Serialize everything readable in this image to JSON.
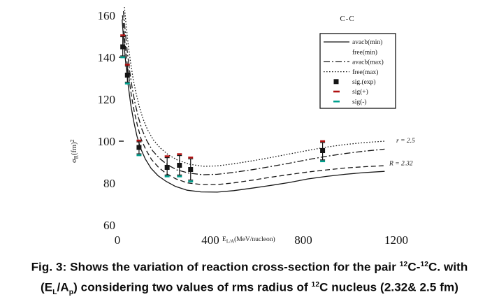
{
  "figure": {
    "legend": {
      "title": "C-C",
      "entries": [
        {
          "label": "avacb(min)",
          "sample": "solid",
          "color": "#151515"
        },
        {
          "label": "free(min)",
          "sample": "none",
          "color": "#151515"
        },
        {
          "label": "avacb(max)",
          "sample": "dashdot",
          "color": "#151515"
        },
        {
          "label": "free(max)",
          "sample": "dotted",
          "color": "#151515"
        },
        {
          "label": "sig.(exp)",
          "sample": "square",
          "color": "#151515"
        },
        {
          "label": "sig(+)",
          "sample": "dash",
          "color": "#b01010"
        },
        {
          "label": "sig(-)",
          "sample": "dash",
          "color": "#00a08e"
        }
      ]
    }
  },
  "chart_data": {
    "type": "line",
    "title": "C-C",
    "xlabel_parts": {
      "base": "E",
      "sub": "L/A",
      "rest": "(MeV/nucleon)"
    },
    "ylabel_parts": {
      "base": "σ",
      "sub": "R",
      "mid": "(fm)",
      "sup": "2"
    },
    "x_ticks": [
      0,
      400,
      800,
      1200
    ],
    "y_ticks": [
      160,
      140,
      120,
      100,
      80,
      60
    ],
    "y_tick_dashes": [
      140,
      100
    ],
    "xlim": [
      0,
      1360
    ],
    "ylim": [
      60,
      165
    ],
    "grid": false,
    "legend_position": "upper-right",
    "accent_colors": {
      "error_plus": "#b01010",
      "error_minus": "#00a08e",
      "line": "#151515"
    },
    "series": [
      {
        "name": "avacb(min)",
        "style": "solid",
        "points": [
          [
            20,
            158
          ],
          [
            28,
            147
          ],
          [
            36,
            137
          ],
          [
            46,
            127
          ],
          [
            58,
            117
          ],
          [
            70,
            109.5
          ],
          [
            84,
            102.5
          ],
          [
            100,
            96.5
          ],
          [
            120,
            91.5
          ],
          [
            145,
            87
          ],
          [
            175,
            83.5
          ],
          [
            210,
            80.8
          ],
          [
            250,
            78.4
          ],
          [
            300,
            76.6
          ],
          [
            360,
            75.8
          ],
          [
            430,
            75.7
          ],
          [
            500,
            76.4
          ],
          [
            580,
            77.6
          ],
          [
            660,
            78.9
          ],
          [
            740,
            80.3
          ],
          [
            820,
            82
          ],
          [
            900,
            83.2
          ],
          [
            980,
            84.2
          ],
          [
            1060,
            85
          ],
          [
            1150,
            85.6
          ]
        ]
      },
      {
        "name": "free(min)",
        "style": "dashed",
        "points": [
          [
            22,
            160
          ],
          [
            30,
            150
          ],
          [
            38,
            141
          ],
          [
            48,
            131.5
          ],
          [
            60,
            122
          ],
          [
            72,
            114.5
          ],
          [
            86,
            107.5
          ],
          [
            102,
            101
          ],
          [
            122,
            96
          ],
          [
            147,
            91.2
          ],
          [
            177,
            87.5
          ],
          [
            212,
            84.4
          ],
          [
            252,
            82
          ],
          [
            302,
            80.1
          ],
          [
            362,
            79.3
          ],
          [
            430,
            79.3
          ],
          [
            500,
            80.1
          ],
          [
            580,
            81.4
          ],
          [
            660,
            82.8
          ],
          [
            740,
            84.1
          ],
          [
            820,
            85.3
          ],
          [
            900,
            86.3
          ],
          [
            980,
            87.2
          ],
          [
            1060,
            87.8
          ],
          [
            1150,
            88.3
          ]
        ]
      },
      {
        "name": "avacb(max)",
        "style": "dashdot",
        "points": [
          [
            26,
            162
          ],
          [
            34,
            152
          ],
          [
            42,
            143
          ],
          [
            52,
            134
          ],
          [
            64,
            125
          ],
          [
            76,
            118
          ],
          [
            90,
            111.5
          ],
          [
            106,
            105.5
          ],
          [
            126,
            100.3
          ],
          [
            151,
            95.5
          ],
          [
            181,
            91.8
          ],
          [
            216,
            88.7
          ],
          [
            256,
            86.3
          ],
          [
            306,
            84.8
          ],
          [
            366,
            84
          ],
          [
            430,
            84.2
          ],
          [
            500,
            85.1
          ],
          [
            580,
            86.4
          ],
          [
            660,
            87.9
          ],
          [
            740,
            89.5
          ],
          [
            820,
            91.2
          ],
          [
            900,
            92.8
          ],
          [
            980,
            94.1
          ],
          [
            1060,
            95.2
          ],
          [
            1150,
            96.2
          ]
        ]
      },
      {
        "name": "free(max)",
        "style": "dotted",
        "points": [
          [
            30,
            164
          ],
          [
            38,
            155
          ],
          [
            46,
            146.5
          ],
          [
            56,
            138
          ],
          [
            68,
            129.5
          ],
          [
            80,
            123
          ],
          [
            94,
            116.5
          ],
          [
            110,
            110.7
          ],
          [
            130,
            105.4
          ],
          [
            155,
            100.6
          ],
          [
            185,
            96.7
          ],
          [
            220,
            93.4
          ],
          [
            260,
            90.9
          ],
          [
            310,
            89
          ],
          [
            370,
            88
          ],
          [
            430,
            88.2
          ],
          [
            500,
            89.2
          ],
          [
            580,
            90.6
          ],
          [
            660,
            92.2
          ],
          [
            740,
            93.9
          ],
          [
            820,
            95.6
          ],
          [
            900,
            97.2
          ],
          [
            980,
            98.4
          ],
          [
            1060,
            99.3
          ],
          [
            1150,
            100
          ]
        ]
      }
    ],
    "experimental": {
      "name": "sig.(exp)",
      "points": [
        {
          "x": 23,
          "y": 145,
          "hi": 150.5,
          "lo": 140
        },
        {
          "x": 43,
          "y": 131.5,
          "hi": 136.5,
          "lo": 127.5
        },
        {
          "x": 93,
          "y": 97,
          "hi": 100.3,
          "lo": 93.3
        },
        {
          "x": 214,
          "y": 87.5,
          "hi": 92.8,
          "lo": 83.2
        },
        {
          "x": 267,
          "y": 88.5,
          "hi": 93.8,
          "lo": 83.2
        },
        {
          "x": 315,
          "y": 86.5,
          "hi": 92.2,
          "lo": 80.8
        },
        {
          "x": 883,
          "y": 95.5,
          "hi": 100,
          "lo": 90.4
        }
      ]
    },
    "annotations": [
      {
        "text": "r = 2.5",
        "x": 1200,
        "y": 100.3
      },
      {
        "text": "R = 2.32",
        "x": 1170,
        "y": 89.5
      }
    ]
  },
  "caption": {
    "line1": [
      {
        "t": "Fig. 3: Shows the variation of reaction cross-section for the pair "
      },
      {
        "t": "12",
        "sup": true
      },
      {
        "t": "C-"
      },
      {
        "t": "12",
        "sup": true
      },
      {
        "t": "C. with"
      }
    ],
    "line2": [
      {
        "t": "(E"
      },
      {
        "t": "L",
        "sub": true
      },
      {
        "t": "/A"
      },
      {
        "t": "p",
        "sub": true
      },
      {
        "t": ") considering two values of rms radius of "
      },
      {
        "t": "12",
        "sup": true
      },
      {
        "t": "C  nucleus (2.32& 2.5 fm)"
      }
    ]
  }
}
